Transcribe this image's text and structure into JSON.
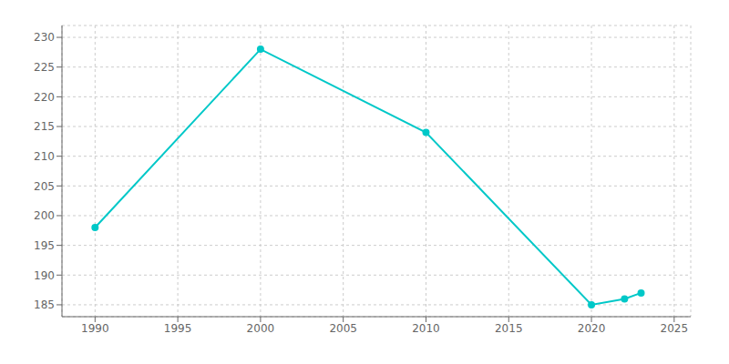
{
  "chart_data": {
    "type": "line",
    "x": [
      1990,
      2000,
      2010,
      2020,
      2022,
      2023
    ],
    "values": [
      198,
      228,
      214,
      185,
      186,
      187
    ],
    "color": "#00c8c8",
    "xlim": [
      1988,
      2026
    ],
    "ylim": [
      183,
      232
    ],
    "xticks": [
      1990,
      1995,
      2000,
      2005,
      2010,
      2015,
      2020,
      2025
    ],
    "yticks": [
      185,
      190,
      195,
      200,
      205,
      210,
      215,
      220,
      225,
      230
    ],
    "grid": true,
    "marker": "circle"
  }
}
